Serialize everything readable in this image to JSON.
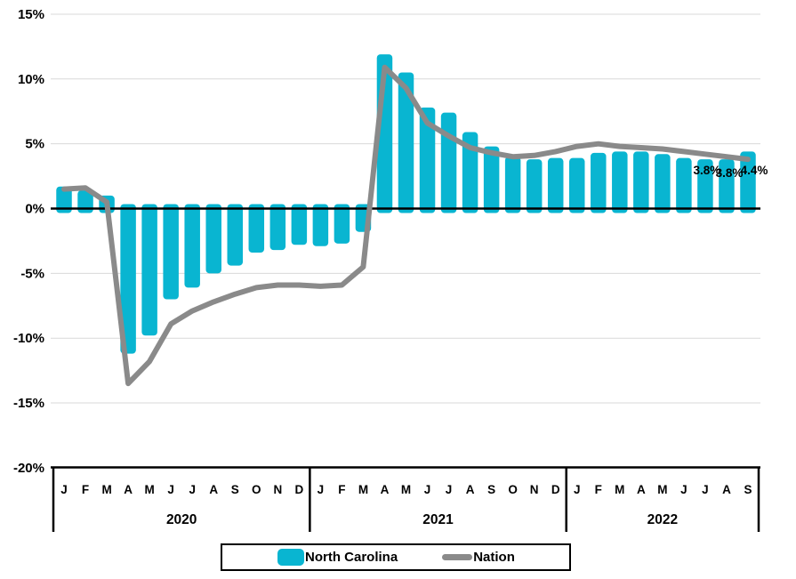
{
  "colors": {
    "north_carolina": "#09B5D1",
    "nation": "#8A8A8A",
    "gridline": "#D9D9D9",
    "zero_line": "#000000",
    "axis_band": "#000000",
    "text": "#000000"
  },
  "legend": {
    "items": [
      {
        "label": "North Carolina",
        "type": "bar"
      },
      {
        "label": "Nation",
        "type": "line"
      }
    ]
  },
  "chart_data": {
    "type": "bar",
    "note_series_types": "North Carolina = bars, Nation = line",
    "months": [
      "J",
      "F",
      "M",
      "A",
      "M",
      "J",
      "J",
      "A",
      "S",
      "O",
      "N",
      "D",
      "J",
      "F",
      "M",
      "A",
      "M",
      "J",
      "J",
      "A",
      "S",
      "O",
      "N",
      "D",
      "J",
      "F",
      "M",
      "A",
      "M",
      "J",
      "J",
      "A",
      "S"
    ],
    "year_groups": [
      {
        "label": "2020",
        "months": 12
      },
      {
        "label": "2021",
        "months": 12
      },
      {
        "label": "2022",
        "months": 9
      }
    ],
    "series": [
      {
        "name": "North Carolina",
        "type": "bar",
        "values": [
          1.7,
          1.4,
          1.0,
          -11.2,
          -9.8,
          -7.0,
          -6.1,
          -5.0,
          -4.4,
          -3.4,
          -3.2,
          -2.8,
          -2.9,
          -2.7,
          -1.8,
          11.9,
          10.5,
          7.8,
          7.4,
          5.9,
          4.8,
          4.0,
          3.8,
          3.9,
          3.9,
          4.3,
          4.4,
          4.4,
          4.2,
          3.9,
          3.8,
          3.8,
          4.4
        ]
      },
      {
        "name": "Nation",
        "type": "line",
        "values": [
          1.5,
          1.6,
          0.5,
          -13.5,
          -11.8,
          -8.9,
          -7.9,
          -7.2,
          -6.6,
          -6.1,
          -5.9,
          -5.9,
          -6.0,
          -5.9,
          -4.5,
          10.9,
          9.3,
          6.6,
          5.6,
          4.7,
          4.3,
          4.0,
          4.1,
          4.4,
          4.8,
          5.0,
          4.8,
          4.7,
          4.6,
          4.4,
          4.2,
          4.0,
          3.8
        ]
      }
    ],
    "y_ticks": [
      15,
      10,
      5,
      0,
      -5,
      -10,
      -15,
      -20
    ],
    "y_tick_labels": [
      "15%",
      "10%",
      "5%",
      "0%",
      "-5%",
      "-10%",
      "-15%",
      "-20%"
    ],
    "ylim": [
      -20,
      15
    ],
    "grid": true,
    "legend_position": "bottom",
    "end_labels": [
      {
        "index": 30,
        "text": "3.8%"
      },
      {
        "index": 31,
        "text": "3.8%"
      },
      {
        "index": 32,
        "text": "4.4%"
      }
    ],
    "title": "",
    "xlabel": "",
    "ylabel": ""
  }
}
